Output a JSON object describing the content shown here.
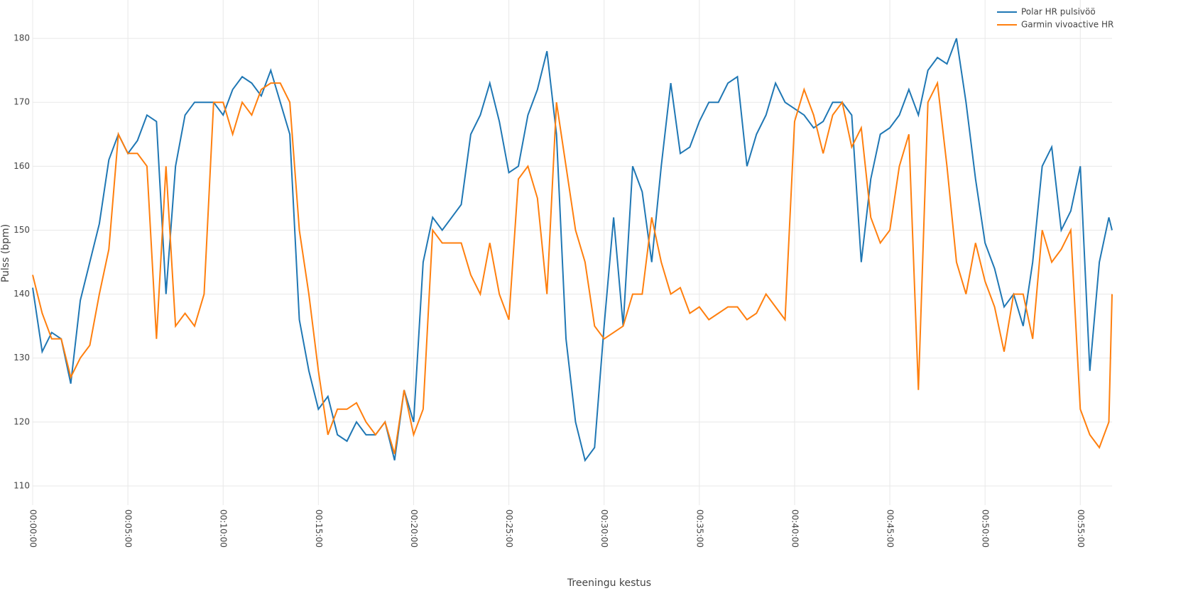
{
  "chart_data": {
    "type": "line",
    "x_label": "Treeningu kestus",
    "y_label": "Pulss (bpm)",
    "x": [
      0,
      30,
      60,
      90,
      120,
      150,
      180,
      210,
      240,
      270,
      300,
      330,
      360,
      390,
      420,
      450,
      480,
      510,
      540,
      570,
      600,
      630,
      660,
      690,
      720,
      750,
      780,
      810,
      840,
      870,
      900,
      930,
      960,
      990,
      1020,
      1050,
      1080,
      1110,
      1140,
      1170,
      1200,
      1230,
      1260,
      1290,
      1320,
      1350,
      1380,
      1410,
      1440,
      1470,
      1500,
      1530,
      1560,
      1590,
      1620,
      1650,
      1680,
      1710,
      1740,
      1770,
      1800,
      1830,
      1860,
      1890,
      1920,
      1950,
      1980,
      2010,
      2040,
      2070,
      2100,
      2130,
      2160,
      2190,
      2220,
      2250,
      2280,
      2310,
      2340,
      2370,
      2400,
      2430,
      2460,
      2490,
      2520,
      2550,
      2580,
      2610,
      2640,
      2670,
      2700,
      2730,
      2760,
      2790,
      2820,
      2850,
      2880,
      2910,
      2940,
      2970,
      3000,
      3030,
      3060,
      3090,
      3120,
      3150,
      3180,
      3210,
      3240,
      3270,
      3300,
      3330,
      3360,
      3390,
      3400
    ],
    "series": [
      {
        "name": "Polar HR pulsivöö",
        "color": "#1f77b4",
        "values": [
          141,
          131,
          134,
          133,
          126,
          139,
          145,
          151,
          161,
          165,
          162,
          164,
          168,
          167,
          140,
          160,
          168,
          170,
          170,
          170,
          168,
          172,
          174,
          173,
          171,
          175,
          170,
          165,
          136,
          128,
          122,
          124,
          118,
          117,
          120,
          118,
          118,
          120,
          114,
          125,
          120,
          145,
          152,
          150,
          152,
          154,
          165,
          168,
          173,
          167,
          159,
          160,
          168,
          172,
          178,
          165,
          133,
          120,
          114,
          116,
          135,
          152,
          135,
          160,
          156,
          145,
          160,
          173,
          162,
          163,
          167,
          170,
          170,
          173,
          174,
          160,
          165,
          168,
          173,
          170,
          169,
          168,
          166,
          167,
          170,
          170,
          168,
          145,
          158,
          165,
          166,
          168,
          172,
          168,
          175,
          177,
          176,
          180,
          170,
          158,
          148,
          144,
          138,
          140,
          135,
          145,
          160,
          163,
          150,
          153,
          160,
          128,
          145,
          152,
          150
        ]
      },
      {
        "name": "Garmin vivoactive HR",
        "color": "#ff7f0e",
        "values": [
          143,
          137,
          133,
          133,
          127,
          130,
          132,
          140,
          147,
          165,
          162,
          162,
          160,
          133,
          160,
          135,
          137,
          135,
          140,
          170,
          170,
          165,
          170,
          168,
          172,
          173,
          173,
          170,
          150,
          140,
          128,
          118,
          122,
          122,
          123,
          120,
          118,
          120,
          115,
          125,
          118,
          122,
          150,
          148,
          148,
          148,
          143,
          140,
          148,
          140,
          136,
          158,
          160,
          155,
          140,
          170,
          160,
          150,
          145,
          135,
          133,
          134,
          135,
          140,
          140,
          152,
          145,
          140,
          141,
          137,
          138,
          136,
          137,
          138,
          138,
          136,
          137,
          140,
          138,
          136,
          167,
          172,
          168,
          162,
          168,
          170,
          163,
          166,
          152,
          148,
          150,
          160,
          165,
          125,
          170,
          173,
          160,
          145,
          140,
          148,
          142,
          138,
          131,
          140,
          140,
          133,
          150,
          145,
          147,
          150,
          122,
          118,
          116,
          120,
          140
        ]
      }
    ],
    "xlim": [
      0,
      3400
    ],
    "ylim": [
      107,
      186
    ],
    "xticks": [
      {
        "value": 0,
        "label": "00:00:00"
      },
      {
        "value": 300,
        "label": "00:05:00"
      },
      {
        "value": 600,
        "label": "00:10:00"
      },
      {
        "value": 900,
        "label": "00:15:00"
      },
      {
        "value": 1200,
        "label": "00:20:00"
      },
      {
        "value": 1500,
        "label": "00:25:00"
      },
      {
        "value": 1800,
        "label": "00:30:00"
      },
      {
        "value": 2100,
        "label": "00:35:00"
      },
      {
        "value": 2400,
        "label": "00:40:00"
      },
      {
        "value": 2700,
        "label": "00:45:00"
      },
      {
        "value": 3000,
        "label": "00:50:00"
      },
      {
        "value": 3300,
        "label": "00:55:00"
      }
    ],
    "yticks": [
      110,
      120,
      130,
      140,
      150,
      160,
      170,
      180
    ],
    "grid": true,
    "legend": "top-right"
  }
}
